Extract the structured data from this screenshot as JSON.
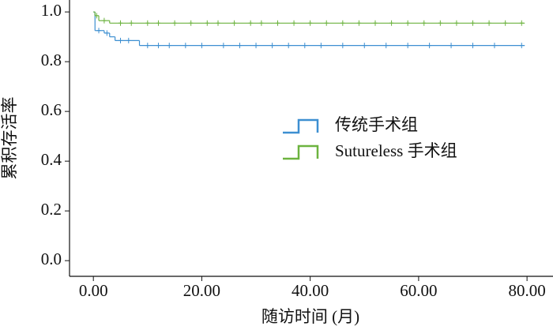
{
  "chart_data": {
    "type": "step",
    "x_label": "随访时间 (月)",
    "y_label": "累积存活率",
    "xlim": [
      -4.4,
      84.5
    ],
    "ylim": [
      -0.063,
      1.048
    ],
    "xticks": [
      {
        "value": 0,
        "label": "0.00"
      },
      {
        "value": 20,
        "label": "20.00"
      },
      {
        "value": 40,
        "label": "40.00"
      },
      {
        "value": 60,
        "label": "60.00"
      },
      {
        "value": 80,
        "label": "80.00"
      }
    ],
    "yticks": [
      {
        "value": 0,
        "label": "0.0"
      },
      0.2,
      0.4,
      0.6,
      0.8,
      {
        "value": 1,
        "label": "1.0"
      }
    ],
    "legend": "center",
    "series": [
      {
        "name": "传统手术组",
        "color": "#3d8fd1",
        "x": [
          0,
          0.3,
          2,
          3,
          4,
          8.5,
          79.5
        ],
        "values": [
          1.0,
          0.925,
          0.915,
          0.9,
          0.885,
          0.865,
          0.865
        ],
        "censor_x": [
          1,
          2.5,
          5,
          6.5,
          10,
          12,
          14,
          17,
          20,
          24,
          27,
          30,
          33,
          36,
          39,
          42,
          46,
          50,
          54,
          58,
          62,
          66,
          70,
          74,
          79
        ],
        "censor_values": [
          0.925,
          0.915,
          0.885,
          0.885,
          0.865,
          0.865,
          0.865,
          0.865,
          0.865,
          0.865,
          0.865,
          0.865,
          0.865,
          0.865,
          0.865,
          0.865,
          0.865,
          0.865,
          0.865,
          0.865,
          0.865,
          0.865,
          0.865,
          0.865,
          0.865
        ]
      },
      {
        "name": "Sutureless 手术组",
        "color": "#6cb33f",
        "x": [
          0,
          0.3,
          1,
          3,
          79.5
        ],
        "values": [
          1.0,
          0.985,
          0.965,
          0.955,
          0.955
        ],
        "censor_x": [
          0.6,
          2,
          5,
          7,
          10,
          12,
          15,
          18,
          21,
          23,
          26,
          29,
          31,
          34,
          37,
          40,
          43,
          46,
          49,
          52,
          55,
          58,
          61,
          64,
          67,
          70,
          73,
          76,
          79
        ],
        "censor_values": [
          0.985,
          0.965,
          0.955,
          0.955,
          0.955,
          0.955,
          0.955,
          0.955,
          0.955,
          0.955,
          0.955,
          0.955,
          0.955,
          0.955,
          0.955,
          0.955,
          0.955,
          0.955,
          0.955,
          0.955,
          0.955,
          0.955,
          0.955,
          0.955,
          0.955,
          0.955,
          0.955,
          0.955,
          0.955
        ]
      }
    ]
  }
}
